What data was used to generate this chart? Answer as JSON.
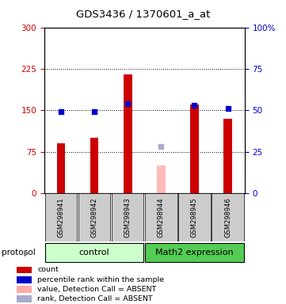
{
  "title": "GDS3436 / 1370601_a_at",
  "samples": [
    "GSM298941",
    "GSM298942",
    "GSM298943",
    "GSM298944",
    "GSM298945",
    "GSM298946"
  ],
  "red_values": [
    90,
    100,
    215,
    null,
    160,
    135
  ],
  "blue_values": [
    49,
    49,
    54,
    null,
    53,
    51
  ],
  "absent_red_value": 50,
  "absent_red_index": 3,
  "absent_blue_value": 28,
  "absent_blue_index": 3,
  "left_ylim": [
    0,
    300
  ],
  "right_ylim": [
    0,
    100
  ],
  "left_yticks": [
    0,
    75,
    150,
    225,
    300
  ],
  "right_yticks": [
    0,
    25,
    50,
    75,
    100
  ],
  "right_yticklabels": [
    "0",
    "25",
    "50",
    "75",
    "100%"
  ],
  "left_color": "#cc0000",
  "right_color": "#0000cc",
  "bar_width": 0.25,
  "sample_bg": "#cccccc",
  "legend_items": [
    {
      "color": "#cc0000",
      "label": "count"
    },
    {
      "color": "#0000cc",
      "label": "percentile rank within the sample"
    },
    {
      "color": "#ffaaaa",
      "label": "value, Detection Call = ABSENT"
    },
    {
      "color": "#aaaacc",
      "label": "rank, Detection Call = ABSENT"
    }
  ],
  "protocol_label": "protocol"
}
